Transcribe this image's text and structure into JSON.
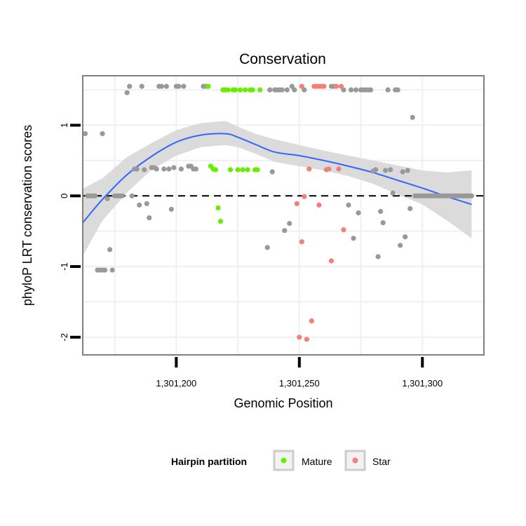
{
  "chart_data": {
    "type": "scatter",
    "title": "Conservation",
    "xlabel": "Genomic Position",
    "ylabel": "phyloP LRT conservation scores",
    "xlim": [
      1301162,
      1301325
    ],
    "ylim": [
      -2.25,
      1.7
    ],
    "xticks": [
      1301200,
      1301250,
      1301300
    ],
    "xtick_labels": [
      "1,301,200",
      "1,301,250",
      "1,301,300"
    ],
    "yticks": [
      -2,
      -1,
      0,
      1
    ],
    "ytick_labels": [
      "-2",
      "-1",
      "0",
      "1"
    ],
    "grid": true,
    "reference_line": {
      "y": 0,
      "style": "dashed"
    },
    "legend": {
      "title": "Hairpin partition",
      "position": "bottom",
      "entries": [
        {
          "label": "Mature",
          "color": "#66ee00"
        },
        {
          "label": "Star",
          "color": "#f08078"
        }
      ]
    },
    "colors": {
      "other": "#999999",
      "Mature": "#66ee00",
      "Star": "#f08078",
      "smooth": "#3366ff",
      "band": "#d9d9d9"
    },
    "series": [
      {
        "group": "other",
        "points": [
          [
            1301163,
            0.88
          ],
          [
            1301164,
            0.0
          ],
          [
            1301165,
            0.0
          ],
          [
            1301166,
            0.0
          ],
          [
            1301167,
            0.0
          ],
          [
            1301168,
            -1.05
          ],
          [
            1301169,
            -1.05
          ],
          [
            1301170,
            -1.05
          ],
          [
            1301170,
            0.88
          ],
          [
            1301171,
            -1.05
          ],
          [
            1301172,
            -0.04
          ],
          [
            1301173,
            -0.76
          ],
          [
            1301174,
            -1.05
          ],
          [
            1301175,
            0.0
          ],
          [
            1301176,
            0.0
          ],
          [
            1301177,
            0.0
          ],
          [
            1301178,
            0.0
          ],
          [
            1301180,
            1.46
          ],
          [
            1301181,
            1.55
          ],
          [
            1301182,
            0.0
          ],
          [
            1301183,
            0.38
          ],
          [
            1301184,
            0.38
          ],
          [
            1301185,
            -0.13
          ],
          [
            1301186,
            1.55
          ],
          [
            1301187,
            0.37
          ],
          [
            1301188,
            -0.11
          ],
          [
            1301189,
            -0.31
          ],
          [
            1301190,
            0.4
          ],
          [
            1301191,
            0.4
          ],
          [
            1301192,
            0.38
          ],
          [
            1301193,
            1.55
          ],
          [
            1301194,
            1.55
          ],
          [
            1301195,
            0.38
          ],
          [
            1301196,
            1.55
          ],
          [
            1301197,
            0.38
          ],
          [
            1301198,
            -0.19
          ],
          [
            1301199,
            0.4
          ],
          [
            1301200,
            1.55
          ],
          [
            1301201,
            1.55
          ],
          [
            1301202,
            0.38
          ],
          [
            1301203,
            1.55
          ],
          [
            1301205,
            0.42
          ],
          [
            1301206,
            0.42
          ],
          [
            1301207,
            0.38
          ],
          [
            1301208,
            0.38
          ],
          [
            1301211,
            1.55
          ],
          [
            1301212,
            1.55
          ],
          [
            1301237,
            -0.73
          ],
          [
            1301238,
            1.5
          ],
          [
            1301239,
            0.34
          ],
          [
            1301240,
            1.5
          ],
          [
            1301241,
            1.5
          ],
          [
            1301242,
            1.5
          ],
          [
            1301243,
            1.5
          ],
          [
            1301244,
            -0.49
          ],
          [
            1301245,
            1.5
          ],
          [
            1301246,
            -0.39
          ],
          [
            1301247,
            1.55
          ],
          [
            1301248,
            1.5
          ],
          [
            1301252,
            1.5
          ],
          [
            1301263,
            1.55
          ],
          [
            1301264,
            1.55
          ],
          [
            1301268,
            1.5
          ],
          [
            1301270,
            -0.13
          ],
          [
            1301271,
            1.5
          ],
          [
            1301272,
            -0.6
          ],
          [
            1301273,
            1.5
          ],
          [
            1301274,
            -0.24
          ],
          [
            1301275,
            1.5
          ],
          [
            1301276,
            1.5
          ],
          [
            1301277,
            1.5
          ],
          [
            1301278,
            1.5
          ],
          [
            1301279,
            1.5
          ],
          [
            1301280,
            0.35
          ],
          [
            1301281,
            0.37
          ],
          [
            1301282,
            -0.86
          ],
          [
            1301283,
            -0.22
          ],
          [
            1301284,
            -0.38
          ],
          [
            1301285,
            0.36
          ],
          [
            1301286,
            1.5
          ],
          [
            1301287,
            0.37
          ],
          [
            1301288,
            0.04
          ],
          [
            1301289,
            1.5
          ],
          [
            1301290,
            1.5
          ],
          [
            1301291,
            -0.7
          ],
          [
            1301292,
            0.34
          ],
          [
            1301293,
            -0.58
          ],
          [
            1301294,
            0.36
          ],
          [
            1301295,
            -0.18
          ],
          [
            1301296,
            1.11
          ],
          [
            1301297,
            0.0
          ],
          [
            1301298,
            0.0
          ],
          [
            1301299,
            0.0
          ],
          [
            1301300,
            0.0
          ],
          [
            1301301,
            0.0
          ],
          [
            1301302,
            0.0
          ],
          [
            1301303,
            0.0
          ],
          [
            1301304,
            0.0
          ],
          [
            1301305,
            0.0
          ],
          [
            1301306,
            0.0
          ],
          [
            1301307,
            0.0
          ],
          [
            1301308,
            0.0
          ],
          [
            1301309,
            0.0
          ],
          [
            1301310,
            0.0
          ],
          [
            1301311,
            0.0
          ],
          [
            1301312,
            0.0
          ],
          [
            1301313,
            0.0
          ],
          [
            1301314,
            0.0
          ],
          [
            1301315,
            0.0
          ],
          [
            1301316,
            0.0
          ],
          [
            1301317,
            0.0
          ],
          [
            1301318,
            0.0
          ],
          [
            1301319,
            0.0
          ],
          [
            1301320,
            0.0
          ]
        ]
      },
      {
        "group": "Mature",
        "points": [
          [
            1301213,
            1.55
          ],
          [
            1301214,
            0.42
          ],
          [
            1301215,
            0.38
          ],
          [
            1301216,
            0.37
          ],
          [
            1301217,
            -0.17
          ],
          [
            1301218,
            -0.36
          ],
          [
            1301219,
            1.5
          ],
          [
            1301220,
            1.5
          ],
          [
            1301221,
            1.5
          ],
          [
            1301222,
            0.37
          ],
          [
            1301223,
            1.5
          ],
          [
            1301224,
            1.5
          ],
          [
            1301225,
            0.37
          ],
          [
            1301226,
            1.5
          ],
          [
            1301227,
            0.37
          ],
          [
            1301228,
            1.5
          ],
          [
            1301229,
            0.37
          ],
          [
            1301230,
            1.5
          ],
          [
            1301231,
            1.5
          ],
          [
            1301232,
            0.37
          ],
          [
            1301233,
            0.37
          ],
          [
            1301234,
            1.5
          ]
        ]
      },
      {
        "group": "Star",
        "points": [
          [
            1301249,
            -0.11
          ],
          [
            1301250,
            -2.0
          ],
          [
            1301251,
            1.55
          ],
          [
            1301251,
            -0.65
          ],
          [
            1301252,
            -0.01
          ],
          [
            1301253,
            -2.03
          ],
          [
            1301254,
            0.38
          ],
          [
            1301255,
            -1.77
          ],
          [
            1301256,
            1.55
          ],
          [
            1301257,
            1.55
          ],
          [
            1301258,
            1.55
          ],
          [
            1301258,
            -0.13
          ],
          [
            1301259,
            1.55
          ],
          [
            1301260,
            1.55
          ],
          [
            1301261,
            0.37
          ],
          [
            1301262,
            0.38
          ],
          [
            1301263,
            -0.92
          ],
          [
            1301265,
            1.55
          ],
          [
            1301266,
            0.38
          ],
          [
            1301267,
            1.55
          ],
          [
            1301268,
            -0.48
          ]
        ]
      }
    ],
    "smooth": [
      [
        1301162,
        -0.38
      ],
      [
        1301170,
        -0.05
      ],
      [
        1301180,
        0.3
      ],
      [
        1301190,
        0.56
      ],
      [
        1301200,
        0.76
      ],
      [
        1301210,
        0.86
      ],
      [
        1301220,
        0.88
      ],
      [
        1301225,
        0.83
      ],
      [
        1301232,
        0.73
      ],
      [
        1301240,
        0.62
      ],
      [
        1301250,
        0.57
      ],
      [
        1301260,
        0.5
      ],
      [
        1301270,
        0.42
      ],
      [
        1301280,
        0.33
      ],
      [
        1301290,
        0.22
      ],
      [
        1301300,
        0.11
      ],
      [
        1301310,
        -0.01
      ],
      [
        1301320,
        -0.12
      ]
    ],
    "band": [
      [
        1301162,
        -0.85,
        0.1
      ],
      [
        1301170,
        -0.35,
        0.25
      ],
      [
        1301180,
        0.05,
        0.55
      ],
      [
        1301190,
        0.37,
        0.75
      ],
      [
        1301200,
        0.57,
        0.93
      ],
      [
        1301210,
        0.69,
        1.03
      ],
      [
        1301220,
        0.72,
        1.06
      ],
      [
        1301225,
        0.69,
        0.98
      ],
      [
        1301232,
        0.6,
        0.88
      ],
      [
        1301240,
        0.48,
        0.8
      ],
      [
        1301250,
        0.42,
        0.72
      ],
      [
        1301260,
        0.36,
        0.64
      ],
      [
        1301270,
        0.28,
        0.57
      ],
      [
        1301280,
        0.17,
        0.5
      ],
      [
        1301290,
        0.02,
        0.43
      ],
      [
        1301300,
        -0.12,
        0.36
      ],
      [
        1301310,
        -0.35,
        0.33
      ],
      [
        1301320,
        -0.6,
        0.36
      ]
    ]
  }
}
